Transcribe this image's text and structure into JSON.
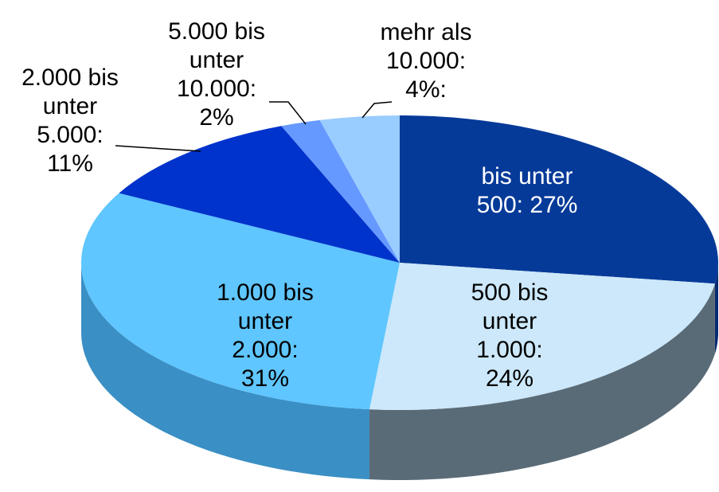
{
  "chart_data": {
    "type": "pie3d",
    "values": [
      27,
      24,
      31,
      11,
      2,
      4
    ],
    "value_labels": [
      "bis unter 500: 27%",
      "500 bis unter 1.000: 24%",
      "1.000 bis unter 2.000: 31%",
      "2.000 bis unter 5.000: 11%",
      "5.000 bis unter 10.000: 2%",
      "mehr als 10.000: 4%:"
    ],
    "colors": [
      "#063a99",
      "#cce8fa",
      "#5fc6ff",
      "#0033cc",
      "#6699ff",
      "#99ccff"
    ]
  }
}
